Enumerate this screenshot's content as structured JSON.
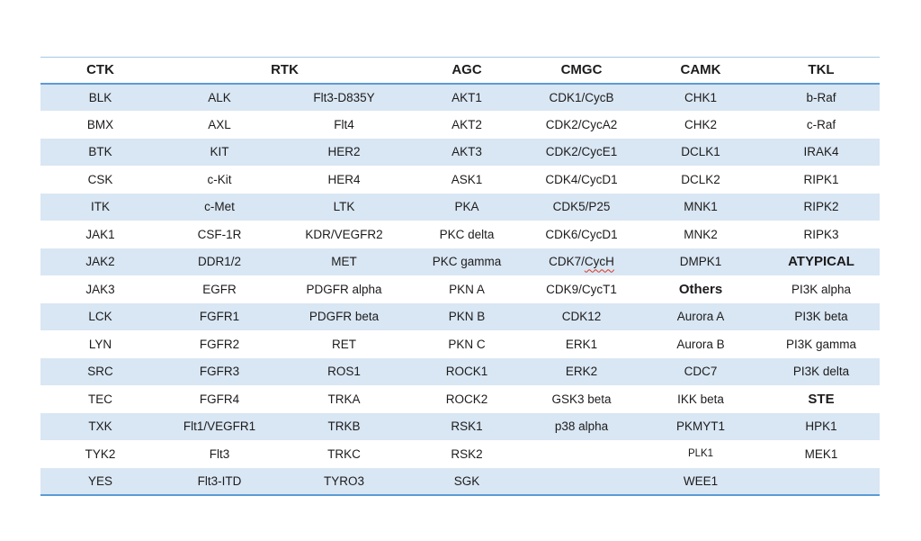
{
  "colors": {
    "stripe": "#d9e6f3",
    "line": "#5b9bd5",
    "line_light": "#a5c8e4",
    "text": "#1c1c1c",
    "background": "#ffffff",
    "spellcheck": "#e0331f"
  },
  "table": {
    "headers": [
      {
        "label": "CTK",
        "span": 1
      },
      {
        "label": "RTK",
        "span": 2
      },
      {
        "label": "AGC",
        "span": 1
      },
      {
        "label": "CMGC",
        "span": 1
      },
      {
        "label": "CAMK",
        "span": 1
      },
      {
        "label": "TKL",
        "span": 1
      }
    ],
    "rows": [
      [
        "BLK",
        "ALK",
        "Flt3-D835Y",
        "AKT1",
        "CDK1/CycB",
        "CHK1",
        "b-Raf"
      ],
      [
        "BMX",
        "AXL",
        "Flt4",
        "AKT2",
        "CDK2/CycA2",
        "CHK2",
        "c-Raf"
      ],
      [
        "BTK",
        "KIT",
        "HER2",
        "AKT3",
        "CDK2/CycE1",
        "DCLK1",
        "IRAK4"
      ],
      [
        "CSK",
        "c-Kit",
        "HER4",
        "ASK1",
        "CDK4/CycD1",
        "DCLK2",
        "RIPK1"
      ],
      [
        "ITK",
        "c-Met",
        "LTK",
        "PKA",
        "CDK5/P25",
        "MNK1",
        "RIPK2"
      ],
      [
        "JAK1",
        "CSF-1R",
        "KDR/VEGFR2",
        "PKC delta",
        "CDK6/CycD1",
        "MNK2",
        "RIPK3"
      ],
      [
        "JAK2",
        "DDR1/2",
        "MET",
        "PKC gamma",
        {
          "t": "CDK7/CycH",
          "wavy": "CycH"
        },
        "DMPK1",
        {
          "t": "ATYPICAL",
          "bold": true
        }
      ],
      [
        "JAK3",
        "EGFR",
        "PDGFR alpha",
        "PKN A",
        "CDK9/CycT1",
        {
          "t": "Others",
          "bold": true
        },
        "PI3K alpha"
      ],
      [
        "LCK",
        "FGFR1",
        "PDGFR beta",
        "PKN B",
        "CDK12",
        "Aurora A",
        "PI3K beta"
      ],
      [
        "LYN",
        "FGFR2",
        "RET",
        "PKN C",
        "ERK1",
        "Aurora B",
        "PI3K gamma"
      ],
      [
        "SRC",
        "FGFR3",
        "ROS1",
        "ROCK1",
        "ERK2",
        "CDC7",
        "PI3K delta"
      ],
      [
        "TEC",
        "FGFR4",
        "TRKA",
        "ROCK2",
        "GSK3 beta",
        "IKK beta",
        {
          "t": "STE",
          "bold": true
        }
      ],
      [
        "TXK",
        "Flt1/VEGFR1",
        "TRKB",
        "RSK1",
        "p38 alpha",
        "PKMYT1",
        "HPK1"
      ],
      [
        "TYK2",
        "Flt3",
        "TRKC",
        "RSK2",
        "",
        {
          "t": "PLK1",
          "small": true
        },
        "MEK1"
      ],
      [
        "YES",
        "Flt3-ITD",
        "TYRO3",
        "SGK",
        "",
        "WEE1",
        ""
      ]
    ]
  }
}
